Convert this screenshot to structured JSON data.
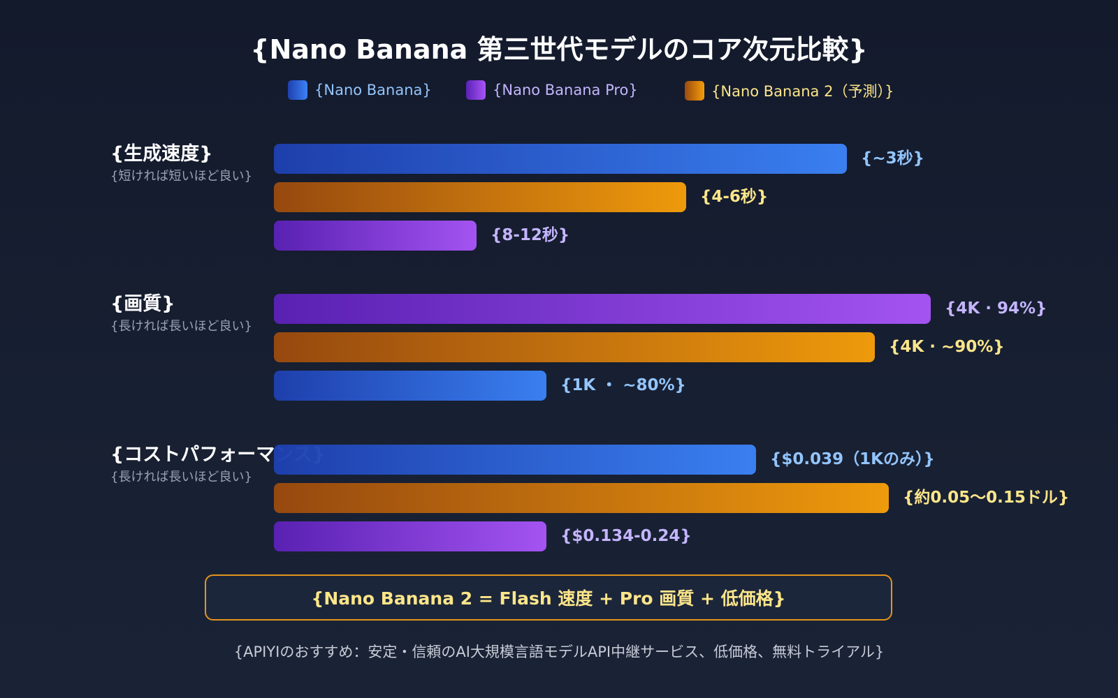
{
  "chart_data": {
    "type": "bar",
    "orientation": "horizontal",
    "title": "{Nano Banana 第三世代モデルのコア次元比較}",
    "legend": {
      "placement": "top",
      "items": [
        {
          "name": "{Nano Banana}",
          "color": "#3b82f6",
          "text_color": "#93c5fd"
        },
        {
          "name": "{Nano Banana Pro}",
          "color": "#9333ea",
          "text_color": "#c4b5fd"
        },
        {
          "name": "{Nano Banana 2（予測）}",
          "color": "#f59e0b",
          "text_color": "#fde68a"
        }
      ]
    },
    "scale_max": 100,
    "groups": [
      {
        "label": "{生成速度}",
        "sublabel": "{短ければ短いほど良い}",
        "bars": [
          {
            "series": 0,
            "score": 82,
            "label": "{~3秒}"
          },
          {
            "series": 2,
            "score": 59,
            "label": "{4-6秒}"
          },
          {
            "series": 1,
            "score": 29,
            "label": "{8-12秒}"
          }
        ]
      },
      {
        "label": "{画質}",
        "sublabel": "{長ければ長いほど良い}",
        "bars": [
          {
            "series": 1,
            "score": 94,
            "label": "{4K · 94%}"
          },
          {
            "series": 2,
            "score": 86,
            "label": "{4K · ~90%}"
          },
          {
            "series": 0,
            "score": 39,
            "label": "{1K ・ ~80%}"
          }
        ]
      },
      {
        "label": "{コストパフォーマンス}",
        "sublabel": "{長ければ長いほど良い}",
        "bars": [
          {
            "series": 0,
            "score": 69,
            "label": "{$0.039（1Kのみ）}"
          },
          {
            "series": 2,
            "score": 88,
            "label": "{約0.05〜0.15ドル}"
          },
          {
            "series": 1,
            "score": 39,
            "label": "{$0.134-0.24}"
          }
        ]
      }
    ]
  },
  "summary": "{Nano Banana 2 = Flash 速度 + Pro 画質 + 低価格}",
  "footer": "{APIYIのおすすめ：安定・信頼のAI大規模言語モデルAPI中継サービス、低価格、無料トライアル}"
}
